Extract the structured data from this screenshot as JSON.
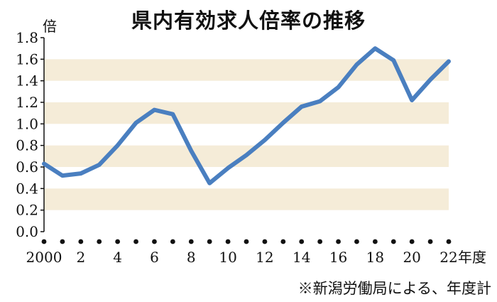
{
  "chart_data": {
    "type": "line",
    "title": "県内有効求人倍率の推移",
    "ylabel": "倍",
    "xlabel": "年度",
    "ylim": [
      0,
      1.8
    ],
    "y_ticks": [
      "0.0",
      "0.2",
      "0.4",
      "0.6",
      "0.8",
      "1.0",
      "1.2",
      "1.4",
      "1.6",
      "1.8"
    ],
    "x_ticks": [
      "2000",
      "2",
      "4",
      "6",
      "8",
      "10",
      "12",
      "14",
      "16",
      "18",
      "20",
      "22"
    ],
    "x_tick_suffix": "年度",
    "x": [
      2000,
      2001,
      2002,
      2003,
      2004,
      2005,
      2006,
      2007,
      2008,
      2009,
      2010,
      2011,
      2012,
      2013,
      2014,
      2015,
      2016,
      2017,
      2018,
      2019,
      2020,
      2021,
      2022
    ],
    "series": [
      {
        "values": [
          0.63,
          0.52,
          0.54,
          0.62,
          0.8,
          1.01,
          1.13,
          1.09,
          0.75,
          0.45,
          0.59,
          0.71,
          0.85,
          1.01,
          1.16,
          1.21,
          1.34,
          1.55,
          1.7,
          1.59,
          1.22,
          1.41,
          1.58
        ]
      }
    ],
    "grid": "alternating horizontal bands",
    "band_color": "#f5ecd8",
    "line_color": "#4a7fc0",
    "note": "※新潟労働局による、年度計"
  }
}
